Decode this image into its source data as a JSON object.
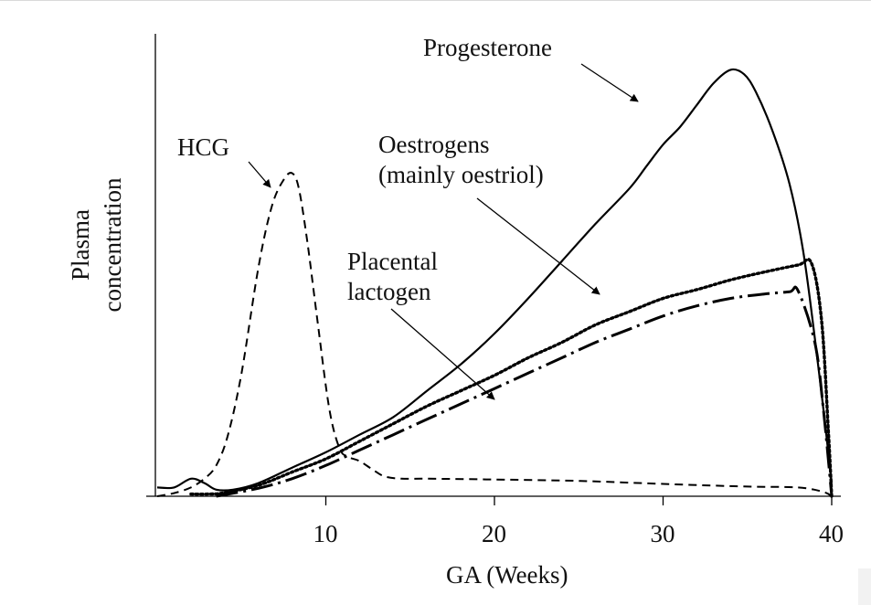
{
  "chart_data": {
    "type": "line",
    "title": "",
    "xlabel": "GA (Weeks)",
    "ylabel": [
      "Plasma",
      "concentration"
    ],
    "xlim": [
      0,
      40
    ],
    "ylim": [
      0,
      100
    ],
    "xticks": [
      10,
      20,
      30,
      40
    ],
    "grid": false,
    "series": [
      {
        "name": "Progesterone",
        "style": "solid",
        "x": [
          0,
          1,
          2,
          2.8,
          3.5,
          4.5,
          6,
          8,
          10,
          12,
          14,
          16,
          18,
          20,
          22,
          24,
          26,
          28,
          29,
          30,
          31,
          32,
          33,
          34,
          34.8,
          35.5,
          36.5,
          37.5,
          38.3,
          39,
          39.5,
          40
        ],
        "y": [
          2,
          2,
          4,
          3,
          1.5,
          1.5,
          3,
          6.5,
          10,
          14,
          18,
          24,
          30,
          37,
          45,
          53.5,
          62,
          70,
          75,
          80,
          84,
          89,
          94,
          97,
          96,
          92,
          83,
          71,
          56,
          36,
          20,
          3
        ]
      },
      {
        "name": "Oestrogens (mainly oestriol)",
        "style": "dotted",
        "x": [
          2,
          3,
          4,
          6,
          8,
          10,
          12,
          14,
          16,
          18,
          20,
          22,
          24,
          26,
          28,
          30,
          32,
          34,
          36,
          38,
          38.8,
          39.4,
          39.8,
          40
        ],
        "y": [
          0.5,
          0.5,
          0.8,
          2.5,
          5.5,
          8.5,
          12.5,
          16.5,
          20.5,
          24,
          27.5,
          31.5,
          35,
          39,
          42,
          45,
          47,
          49.2,
          51,
          52.6,
          53,
          40,
          15,
          0
        ]
      },
      {
        "name": "Placental lactogen",
        "style": "dashdot",
        "x": [
          3.5,
          6,
          8,
          10,
          12,
          14,
          16,
          18,
          20,
          22,
          24,
          26,
          28,
          30,
          32,
          34,
          36,
          37.5,
          38,
          39,
          39.5,
          40
        ],
        "y": [
          0,
          1.8,
          4,
          7,
          10.5,
          14,
          17.5,
          21,
          24.5,
          28,
          31.5,
          35,
          38,
          41,
          43.3,
          45,
          46,
          46.5,
          46.8,
          35,
          20,
          0
        ]
      },
      {
        "name": "HCG",
        "style": "dashed",
        "x": [
          0,
          1,
          2,
          2.8,
          3.5,
          4.2,
          5,
          6,
          6.8,
          7.5,
          8,
          8.4,
          8.9,
          9.5,
          10.2,
          10.8,
          11.3,
          12,
          12.8,
          13.5,
          14.5,
          16,
          20,
          25,
          30,
          35,
          38,
          39.5,
          40
        ],
        "y": [
          0,
          0.7,
          2,
          4,
          7,
          14,
          28,
          52,
          66,
          72,
          73.5,
          70,
          58,
          40,
          20,
          11,
          9,
          8,
          6,
          4.5,
          4,
          4,
          3.8,
          3.5,
          2.8,
          2.2,
          2,
          1,
          0
        ]
      }
    ],
    "annotations": [
      {
        "text": "Progesterone",
        "target_series": "Progesterone"
      },
      {
        "text": [
          "Oestrogens",
          "(mainly oestriol)"
        ],
        "target_series": "Oestrogens (mainly oestriol)"
      },
      {
        "text": [
          "Placental",
          "lactogen"
        ],
        "target_series": "Placental lactogen"
      },
      {
        "text": "HCG",
        "target_series": "HCG"
      }
    ]
  },
  "colors": {
    "line": "#000000",
    "text": "#111111"
  }
}
